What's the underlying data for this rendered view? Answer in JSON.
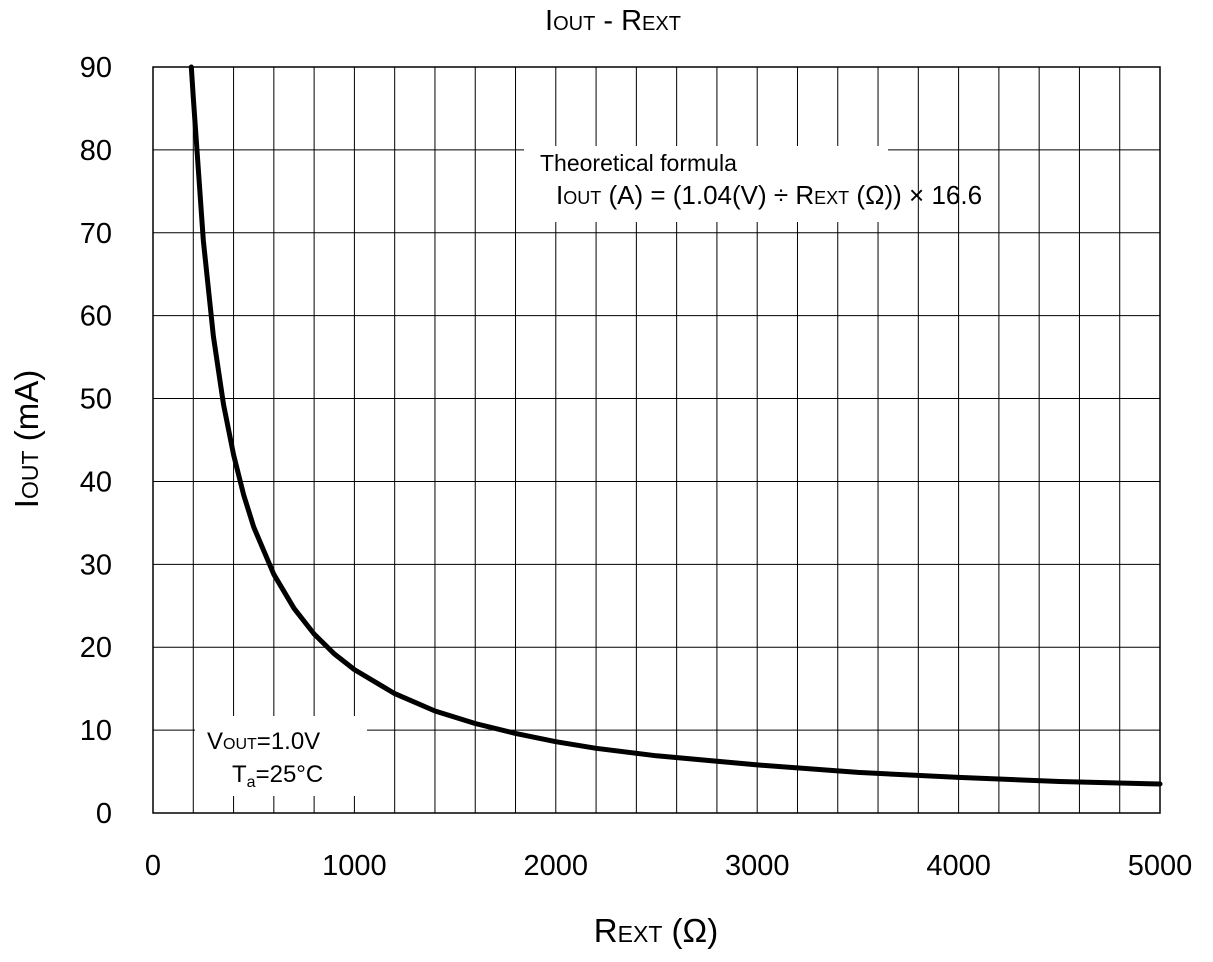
{
  "chart_data": {
    "type": "line",
    "title": {
      "main": "I",
      "main_sub": "OUT",
      "sep": " - ",
      "second": "R",
      "second_sub": "EXT"
    },
    "xlabel": {
      "main": "R",
      "sub": "EXT",
      "rest": " (Ω)"
    },
    "ylabel": {
      "main": "I",
      "sub": "OUT",
      "rest": " (mA)"
    },
    "xlim": [
      0,
      5000
    ],
    "ylim": [
      0,
      90
    ],
    "x_ticks": [
      0,
      1000,
      2000,
      3000,
      4000,
      5000
    ],
    "y_ticks": [
      0,
      10,
      20,
      30,
      40,
      50,
      60,
      70,
      80,
      90
    ],
    "x_grid_step": 200,
    "y_grid_step": 10,
    "grid": true,
    "formula": {
      "line1": "Theoretical formula",
      "p1": "I",
      "p1_sub": "OUT",
      "p2": " (A) = (1.04(V) ÷ R",
      "p2_sub": "EXT",
      "p3": " (Ω)) × 16.6"
    },
    "conditions": {
      "v_main": "V",
      "v_sub": "OUT",
      "v_rest": "=1.0V",
      "t_main": "T",
      "t_sub": "a",
      "t_rest": "=25°C"
    },
    "series": [
      {
        "color": "#000000",
        "x": [
          190,
          200,
          250,
          300,
          350,
          400,
          450,
          500,
          600,
          700,
          800,
          900,
          1000,
          1200,
          1400,
          1600,
          1800,
          2000,
          2200,
          2500,
          3000,
          3500,
          4000,
          4500,
          5000
        ],
        "y": [
          90,
          86.3,
          69.1,
          57.5,
          49.3,
          43.2,
          38.4,
          34.5,
          28.8,
          24.7,
          21.6,
          19.2,
          17.3,
          14.4,
          12.3,
          10.8,
          9.6,
          8.6,
          7.8,
          6.9,
          5.8,
          4.9,
          4.3,
          3.8,
          3.5
        ]
      }
    ]
  }
}
